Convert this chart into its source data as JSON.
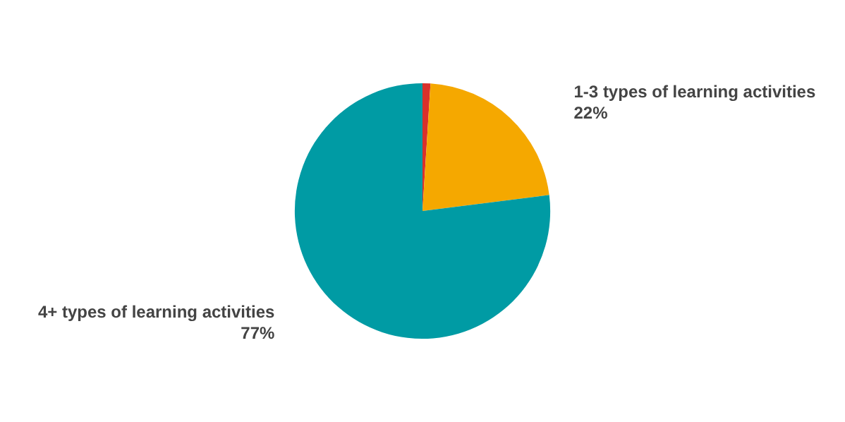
{
  "chart_data": {
    "type": "pie",
    "categories": [
      null,
      "1-3 types of learning activities",
      "4+ types of learning activities"
    ],
    "values": [
      1,
      22,
      77
    ],
    "colors": [
      "#d9312b",
      "#f5a800",
      "#009ba4"
    ],
    "value_labels": [
      null,
      "22%",
      "77%"
    ],
    "legend": false
  }
}
